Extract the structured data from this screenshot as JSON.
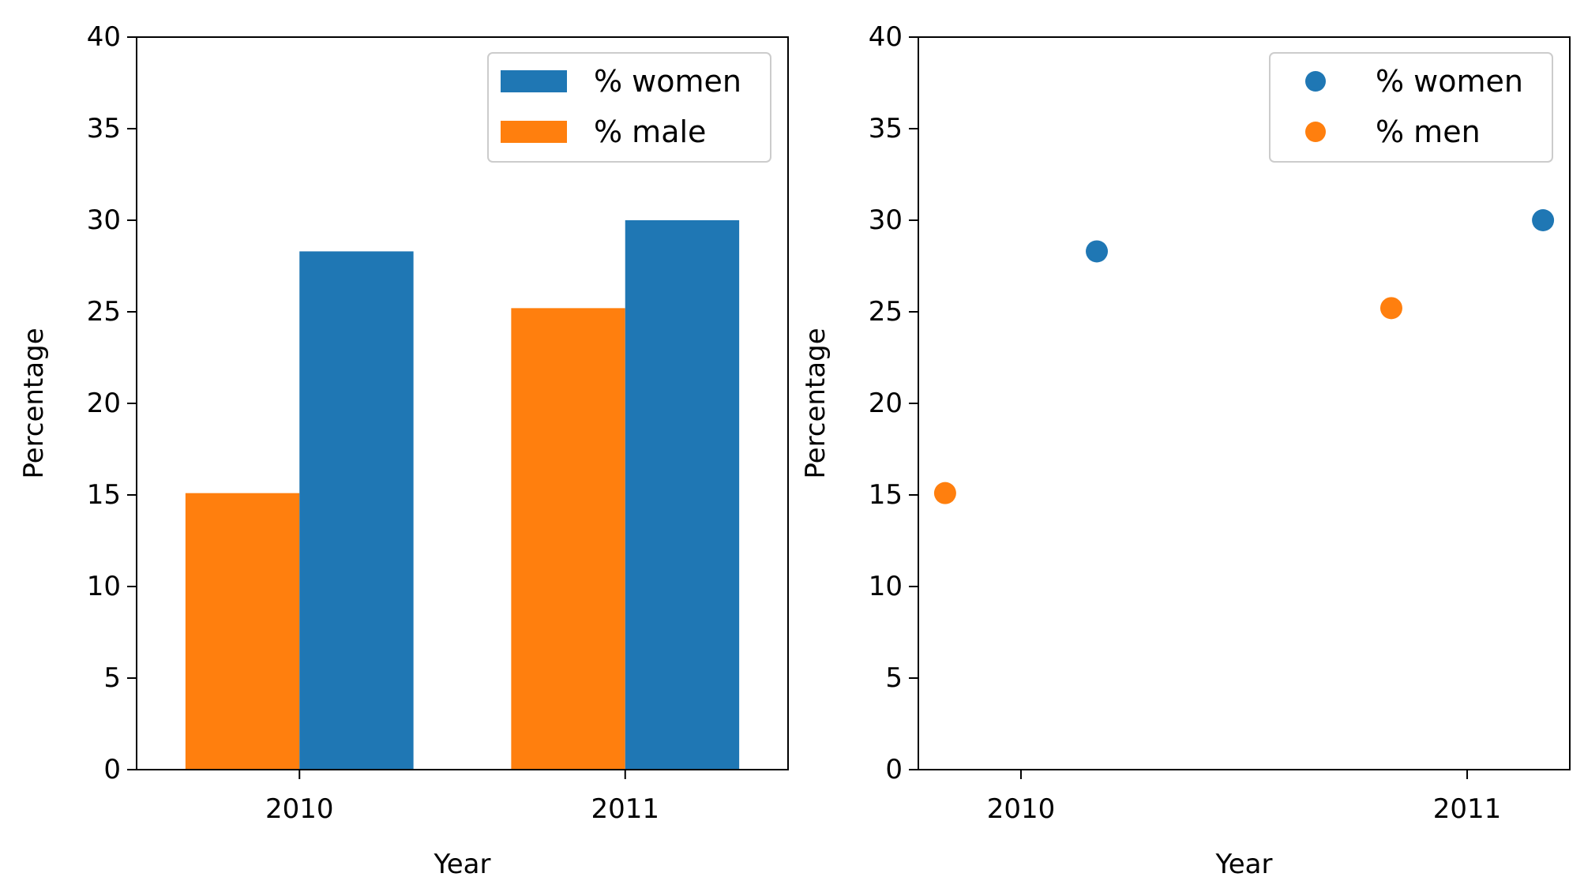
{
  "chart_data": [
    {
      "type": "bar",
      "categories": [
        "2010",
        "2011"
      ],
      "series": [
        {
          "name": "% male",
          "values": [
            15.1,
            25.2
          ],
          "color": "#ff7f0e"
        },
        {
          "name": "% women",
          "values": [
            28.3,
            30.0
          ],
          "color": "#1f77b4"
        }
      ],
      "legend_order": [
        "% women",
        "% male"
      ],
      "xlabel": "Year",
      "ylabel": "Percentage",
      "ylim": [
        0,
        40
      ],
      "yticks": [
        "0",
        "5",
        "10",
        "15",
        "20",
        "25",
        "30",
        "35",
        "40"
      ],
      "grid": false,
      "legend_position": "top-right"
    },
    {
      "type": "scatter",
      "series": [
        {
          "name": "% women",
          "color": "#1f77b4",
          "points": [
            {
              "x": 2010.17,
              "y": 28.3
            },
            {
              "x": 2011.17,
              "y": 30.0
            }
          ]
        },
        {
          "name": "% men",
          "color": "#ff7f0e",
          "points": [
            {
              "x": 2009.83,
              "y": 15.1
            },
            {
              "x": 2010.83,
              "y": 25.2
            }
          ]
        }
      ],
      "xticks": [
        "2010",
        "2011"
      ],
      "xlim": [
        2009.77,
        2011.23
      ],
      "xlabel": "Year",
      "ylabel": "Percentage",
      "ylim": [
        0,
        40
      ],
      "yticks": [
        "0",
        "5",
        "10",
        "15",
        "20",
        "25",
        "30",
        "35",
        "40"
      ],
      "grid": false,
      "legend_position": "top-right"
    }
  ]
}
